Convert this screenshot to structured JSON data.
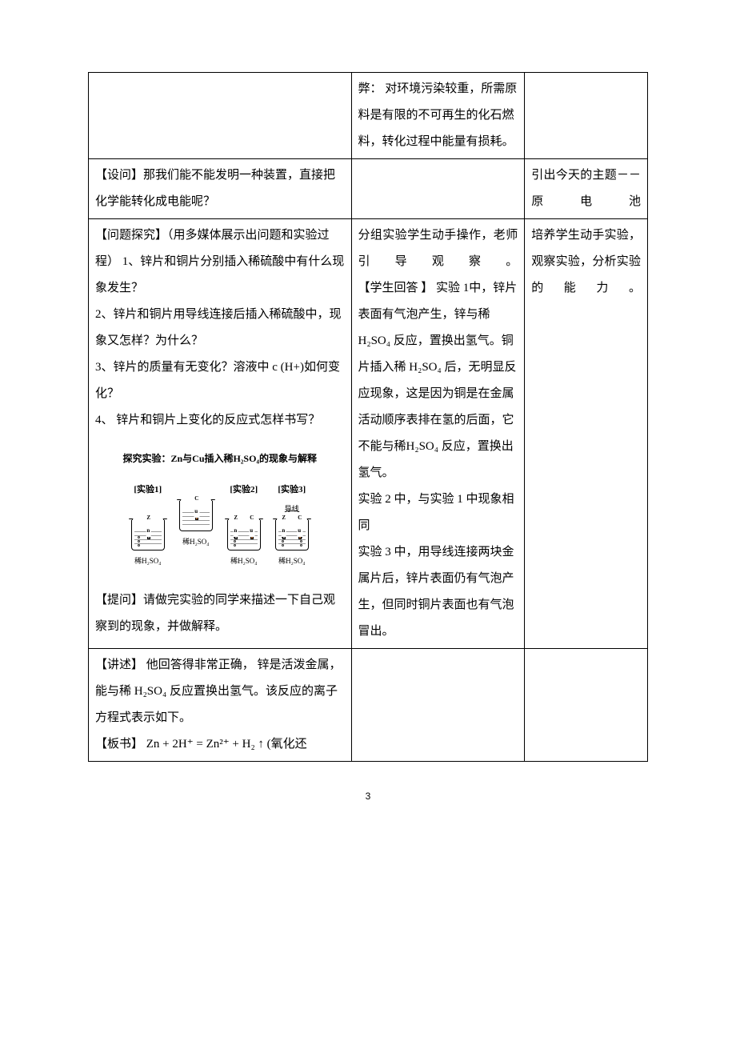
{
  "page_number": "3",
  "table": {
    "rows": [
      {
        "left": "",
        "mid": "弊：  对环境污染较重，所需原料是有限的不可再生的化石燃料，转化过程中能量有损耗。",
        "right": ""
      },
      {
        "left": "【设问】那我们能不能发明一种装置，直接把化学能转化成电能呢？",
        "mid": "",
        "right_justified": true,
        "right": "引出今天的主题－－原电池"
      },
      {
        "left_lines": [
          "【问题探究】（用多媒体展示出问题和实验过程） 1、锌片和铜片分别插入稀硫酸中有什么现象发生？",
          "2、锌片和铜片用导线连接后插入稀硫酸中，现象又怎样？为什么？",
          "3、锌片的质量有无变化？溶液中   c (H+)如何变化？",
          "4、 锌片和铜片上变化的反应式怎样书写？"
        ],
        "left_after": "【提问】请做完实验的同学来描述一下自己观察到的现象，并做解释。",
        "mid_justified_first": true,
        "mid_lines": [
          "分组实验学生动手操作，老师引导观察。",
          "【学生回答 】 实验 1中，锌片表面有气泡产生，锌与稀 H₂SO₄ 反应，置换出氢气。铜片插入稀 H₂SO₄ 后，无明显反应现象，这是因为铜是在金属活动顺序表排在氢的后面，它不能与稀H₂SO₄ 反应，置换出氢气。",
          "实验 2 中，与实验 1 中现象相同",
          "实验 3 中，用导线连接两块金属片后，锌片表面仍有气泡产生，但同时铜片表面也有气泡冒出。"
        ],
        "right_justified": true,
        "right": "培养学生动手实验，观察实验，分析实验的能力。"
      },
      {
        "left_lines": [
          "【讲述】 他回答得非常正确， 锌是活泼金属，能与稀  H₂SO₄ 反应置换出氢气。该反应的离子方程式表示如下。",
          "【板书】 Zn + 2H⁺ = Zn²⁺ + H₂ ↑ (氧化还"
        ],
        "mid": "",
        "right": ""
      }
    ]
  },
  "experiment": {
    "title": "探究实验：Zn与Cu插入稀H₂SO₄的现象与解释",
    "sub_label": "导线",
    "solution_label": "稀H₂SO₄",
    "items": [
      {
        "label": "[实验1]",
        "rods": [
          "Zn"
        ],
        "wire": false,
        "bubbles": "left"
      },
      {
        "label": "",
        "rods": [
          "Cu"
        ],
        "wire": false,
        "bubbles": ""
      },
      {
        "label": "[实验2]",
        "rods": [
          "Zn",
          "Cu"
        ],
        "wire": false,
        "bubbles": "left"
      },
      {
        "label": "[实验3]",
        "rods": [
          "Zn",
          "Cu"
        ],
        "wire": true,
        "bubbles": "both"
      }
    ]
  }
}
